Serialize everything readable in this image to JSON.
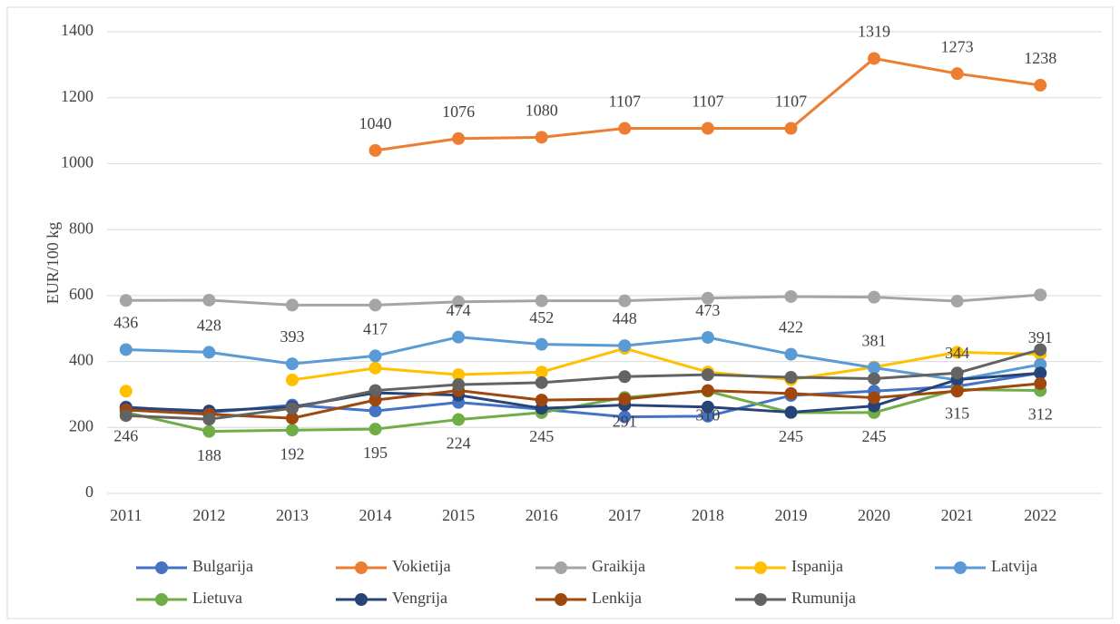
{
  "chart_data": {
    "type": "line",
    "y_label": "EUR/100 kg",
    "categories": [
      "2011",
      "2012",
      "2013",
      "2014",
      "2015",
      "2016",
      "2017",
      "2018",
      "2019",
      "2020",
      "2021",
      "2022"
    ],
    "ylim": [
      0,
      1400
    ],
    "yticks": [
      0,
      200,
      400,
      600,
      800,
      1000,
      1200,
      1400
    ],
    "grid": true,
    "legend": "bottom",
    "series": [
      {
        "name": "Bulgarija",
        "color": "#4472c4",
        "values": [
          262,
          245,
          268,
          250,
          276,
          255,
          232,
          234,
          297,
          310,
          325,
          365
        ]
      },
      {
        "name": "Vokietija",
        "color": "#ed7d31",
        "data_labels": "above",
        "values": [
          null,
          null,
          null,
          1040,
          1076,
          1080,
          1107,
          1107,
          1107,
          1319,
          1273,
          1238
        ]
      },
      {
        "name": "Graikija",
        "color": "#a5a5a5",
        "values": [
          585,
          586,
          571,
          571,
          581,
          584,
          584,
          592,
          597,
          595,
          583,
          602
        ]
      },
      {
        "name": "Ispanija",
        "color": "#ffc000",
        "values": [
          310,
          null,
          344,
          380,
          360,
          368,
          440,
          368,
          345,
          383,
          428,
          422
        ]
      },
      {
        "name": "Latvija",
        "color": "#5b9bd5",
        "data_labels": "above",
        "values": [
          436,
          428,
          393,
          417,
          474,
          452,
          448,
          473,
          422,
          381,
          344,
          391
        ]
      },
      {
        "name": "Lietuva",
        "color": "#70ad47",
        "data_labels": "below",
        "values": [
          246,
          188,
          192,
          195,
          224,
          245,
          291,
          310,
          245,
          245,
          315,
          312
        ]
      },
      {
        "name": "Vengrija",
        "color": "#264478",
        "values": [
          260,
          250,
          262,
          305,
          298,
          258,
          268,
          262,
          246,
          265,
          345,
          365
        ]
      },
      {
        "name": "Lenkija",
        "color": "#9e480e",
        "values": [
          253,
          240,
          228,
          283,
          312,
          283,
          286,
          312,
          303,
          290,
          310,
          333
        ]
      },
      {
        "name": "Rumunija",
        "color": "#636363",
        "values": [
          236,
          225,
          258,
          312,
          330,
          336,
          354,
          360,
          352,
          348,
          365,
          436
        ]
      }
    ]
  }
}
